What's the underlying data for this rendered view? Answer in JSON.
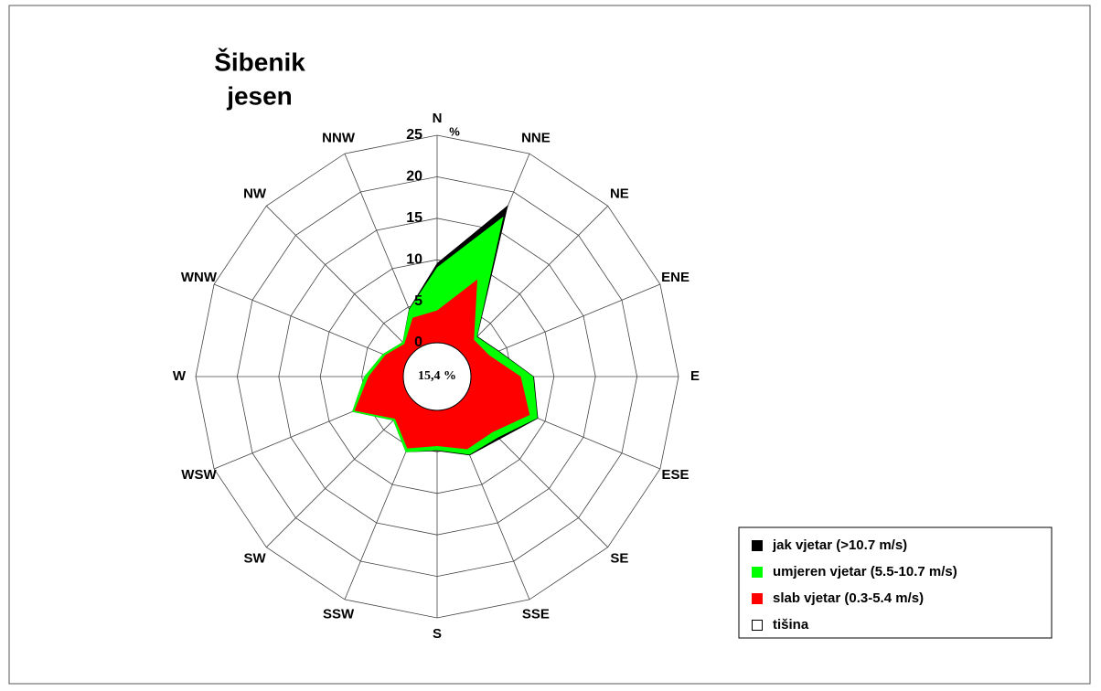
{
  "chart_data": {
    "type": "windrose",
    "title": "Šibenik",
    "subtitle": "jesen",
    "unit_label": "%",
    "directions": [
      "N",
      "NNE",
      "NE",
      "ENE",
      "E",
      "ESE",
      "SE",
      "SSE",
      "S",
      "SSW",
      "SW",
      "WSW",
      "W",
      "WNW",
      "NW",
      "NNW"
    ],
    "series": [
      {
        "name": "slab vjetar (0.3-5.4 m/s)",
        "color": "#ff0000",
        "values": [
          3.9,
          8.6,
          2.2,
          2.7,
          6.0,
          8.0,
          5.4,
          5.4,
          4.3,
          5.3,
          3.1,
          6.7,
          4.2,
          2.7,
          1.5,
          3.6
        ]
      },
      {
        "name": "umjeren vjetar (5.5-10.7 m/s)",
        "color": "#00ff00",
        "values": [
          5.2,
          8.2,
          0.5,
          1.2,
          1.5,
          1.0,
          0.9,
          0.7,
          0.5,
          0.5,
          0.3,
          0.3,
          0.5,
          0.3,
          0.3,
          1.1
        ]
      },
      {
        "name": "jak  vjetar (>10.7 m/s)",
        "color": "#000000",
        "values": [
          0.5,
          1.5,
          0.1,
          0.1,
          0.1,
          0.1,
          0.3,
          0.1,
          0.1,
          0.0,
          0.0,
          0.0,
          0.0,
          0.0,
          0.0,
          0.1
        ]
      }
    ],
    "calm": {
      "name": "tišina",
      "value": 15.4,
      "value_label": "15,4 %",
      "color": "#ffffff"
    },
    "rlim": [
      0,
      25
    ],
    "rticks": [
      0,
      5,
      10,
      15,
      20,
      25
    ],
    "grid": true
  }
}
